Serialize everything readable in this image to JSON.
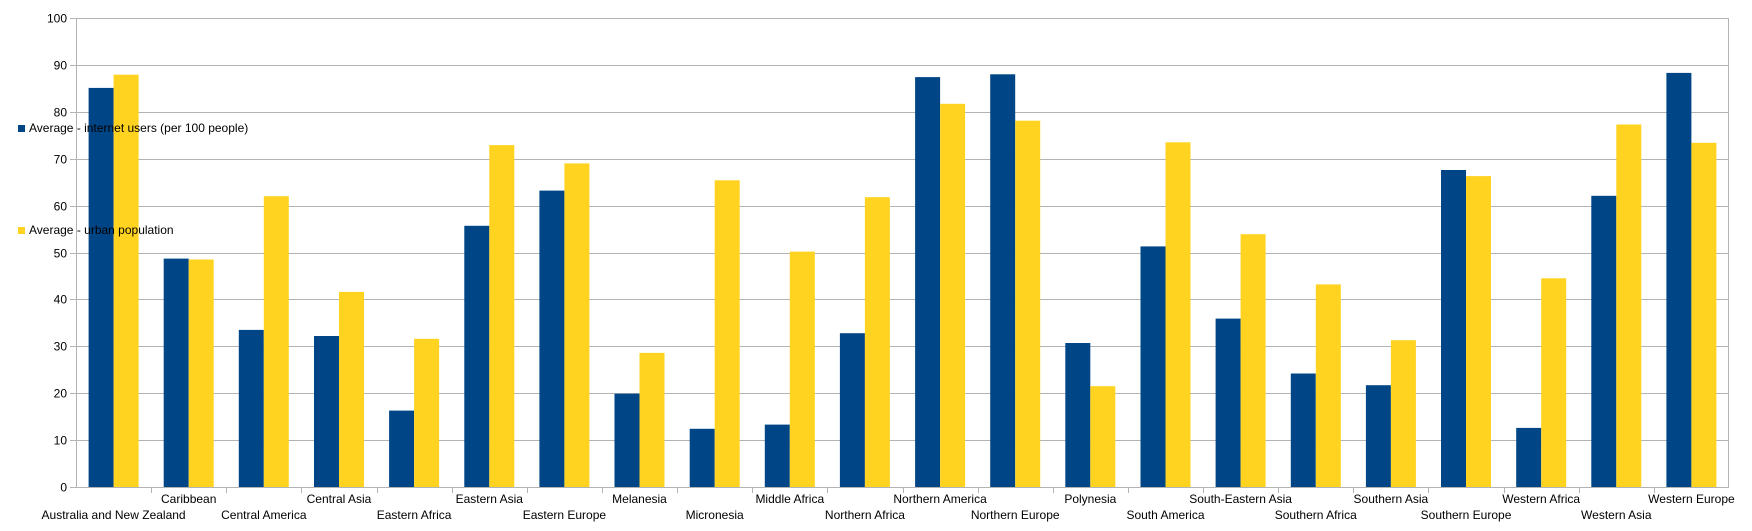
{
  "chart_data": {
    "type": "bar",
    "title": "",
    "xlabel": "",
    "ylabel": "",
    "ylim": [
      0,
      100
    ],
    "yticks": [
      0,
      10,
      20,
      30,
      40,
      50,
      60,
      70,
      80,
      90,
      100
    ],
    "grid": true,
    "legend_position": "left",
    "categories": [
      "Australia and New Zealand",
      "Caribbean",
      "Central America",
      "Central Asia",
      "Eastern Africa",
      "Eastern Asia",
      "Eastern Europe",
      "Melanesia",
      "Micronesia",
      "Middle Africa",
      "Northern Africa",
      "Northern America",
      "Northern Europe",
      "Polynesia",
      "South America",
      "South-Eastern Asia",
      "Southern Africa",
      "Southern Asia",
      "Southern Europe",
      "Western Africa",
      "Western Asia",
      "Western Europe"
    ],
    "series": [
      {
        "name": "Average - internet users (per 100 people)",
        "color": "#004586",
        "values": [
          85.1,
          48.7,
          33.5,
          32.2,
          16.3,
          55.7,
          63.2,
          19.9,
          12.4,
          13.3,
          32.8,
          87.4,
          88.0,
          30.7,
          51.3,
          35.9,
          24.2,
          21.7,
          67.6,
          12.6,
          62.1,
          88.3
        ]
      },
      {
        "name": "Average - urban population",
        "color": "#ffd320",
        "values": [
          87.9,
          48.5,
          62.0,
          41.6,
          31.6,
          72.9,
          69.0,
          28.6,
          65.4,
          50.2,
          61.8,
          81.7,
          78.1,
          21.5,
          73.5,
          53.9,
          43.2,
          31.3,
          66.3,
          44.5,
          77.3,
          73.4
        ]
      }
    ]
  }
}
